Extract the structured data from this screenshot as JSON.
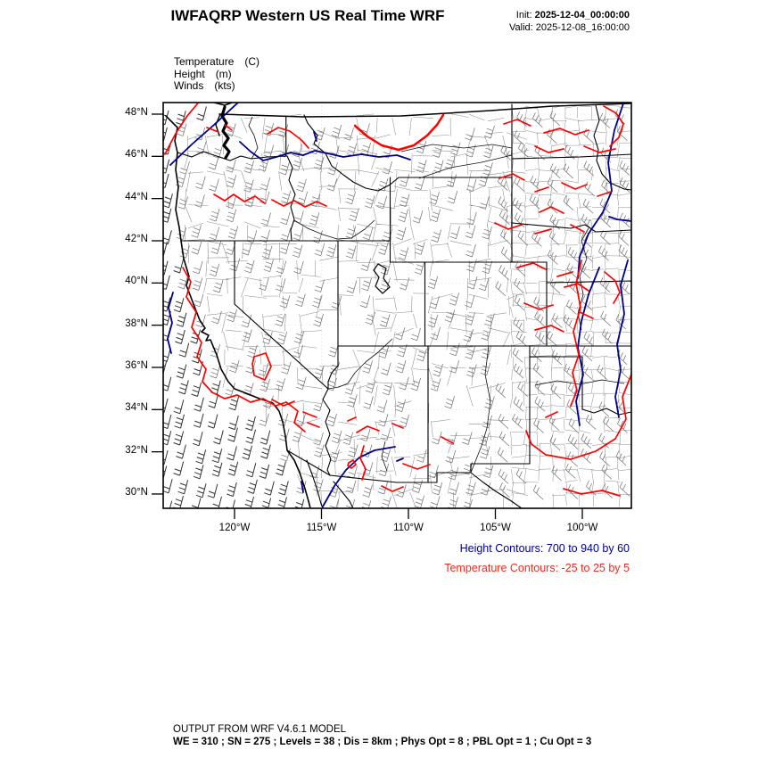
{
  "header": {
    "title": "IWFAQRP Western US Real Time WRF",
    "init_label": "Init:",
    "init_value": "2025-12-04_00:00:00",
    "valid_label": "Valid:",
    "valid_value": "2025-12-08_16:00:00"
  },
  "legend": {
    "items": [
      {
        "name": "Temperature",
        "unit": "(C)"
      },
      {
        "name": "Height",
        "unit": "(m)"
      },
      {
        "name": "Winds",
        "unit": "(kts)"
      }
    ]
  },
  "map": {
    "lat_labels": [
      "48°N",
      "46°N",
      "44°N",
      "42°N",
      "40°N",
      "38°N",
      "36°N",
      "34°N",
      "32°N",
      "30°N"
    ],
    "lon_labels": [
      "120°W",
      "115°W",
      "110°W",
      "105°W",
      "100°W"
    ],
    "height_note": "Height Contours: 700 to 940 by 60",
    "temp_note": "Temperature Contours: -25 to 25 by 5",
    "height_contour_range": {
      "from": 700,
      "to": 940,
      "by": 60
    },
    "temperature_contour_range": {
      "from": -25,
      "to": 25,
      "by": 5
    }
  },
  "footer": {
    "line1": "OUTPUT FROM WRF V4.6.1 MODEL",
    "line2": "WE = 310 ; SN = 275 ; Levels = 38 ; Dis = 8km ; Phys Opt = 8 ; PBL Opt = 1 ; Cu Opt = 3"
  },
  "colors": {
    "height_contour": "#00008b",
    "temperature_contour": "#ff0000",
    "county_line": "#8e8e8e",
    "state_line": "#000000"
  }
}
